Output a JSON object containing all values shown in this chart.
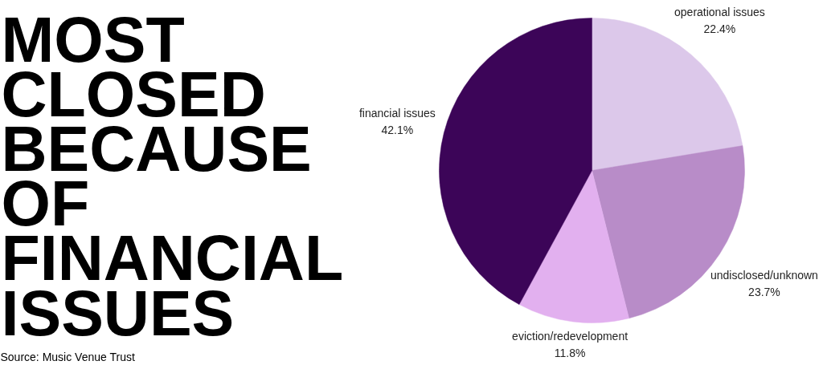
{
  "chart_data": {
    "type": "pie",
    "title": "MOST CLOSED BECAUSE OF FINANCIAL ISSUES",
    "categories": [
      "operational issues",
      "undisclosed/unknown",
      "eviction/redevelopment",
      "financial issues"
    ],
    "values": [
      22.4,
      23.7,
      11.8,
      42.1
    ],
    "colors": [
      "#dcc8ea",
      "#b88cc8",
      "#e2b0ef",
      "#3c0558"
    ],
    "value_labels": [
      "22.4%",
      "23.7%",
      "11.8%",
      "42.1%"
    ],
    "annotations": [
      "Source: Music Venue Trust"
    ]
  }
}
